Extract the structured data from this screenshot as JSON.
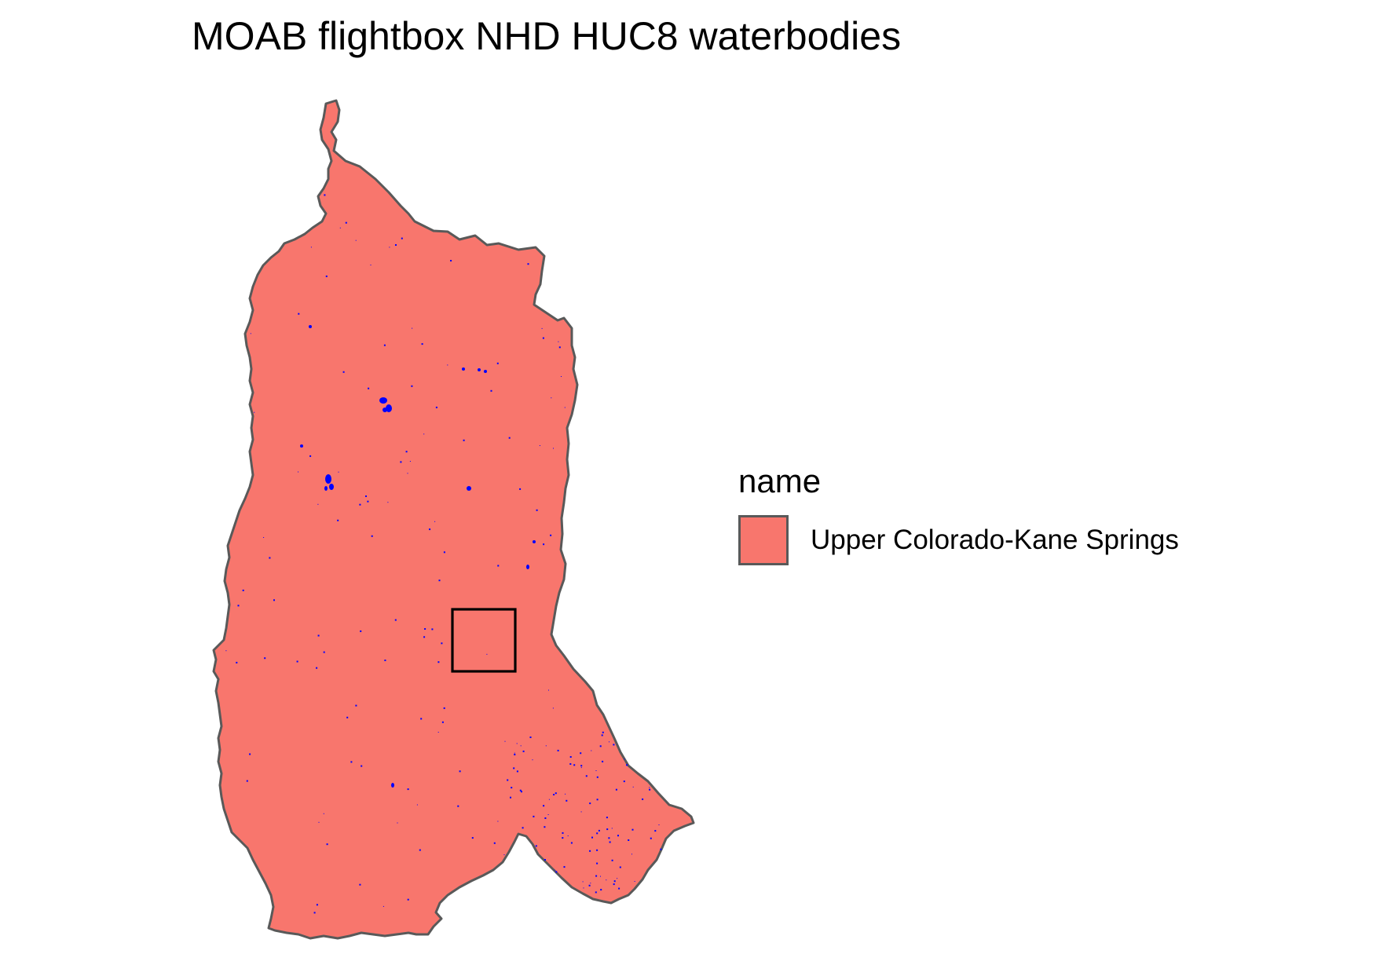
{
  "title": "MOAB flightbox NHD HUC8 waterbodies",
  "legend": {
    "title": "name",
    "items": [
      {
        "label": "Upper Colorado-Kane Springs",
        "fill": "#F8766D",
        "outline": "#595959"
      }
    ]
  },
  "colors": {
    "huc8_fill": "#F8766D",
    "huc8_outline": "#595959",
    "waterbody": "#0000FF",
    "flightbox": "#000000",
    "background": "#FFFFFF"
  }
}
